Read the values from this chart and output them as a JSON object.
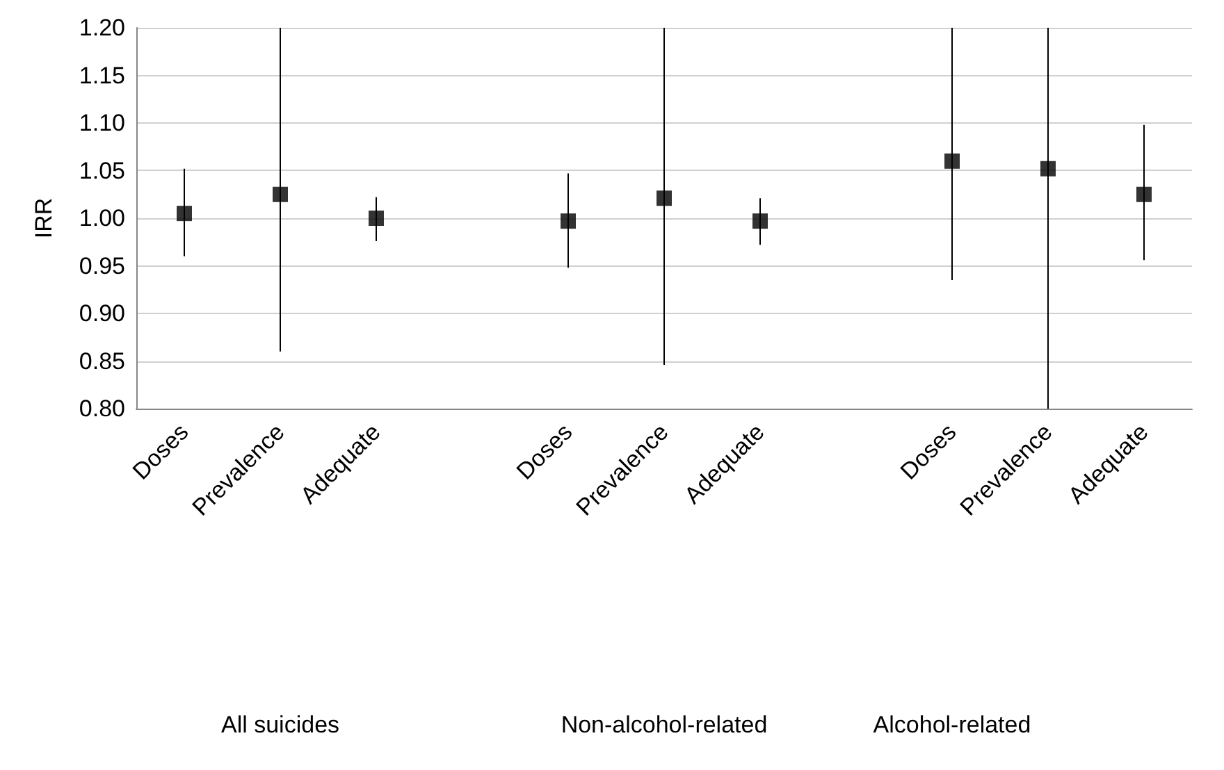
{
  "chart_data": {
    "type": "scatter",
    "ylabel": "IRR",
    "categories": [
      "Doses",
      "Prevalence",
      "Adequate",
      null,
      "Doses",
      "Prevalence",
      "Adequate",
      null,
      "Doses",
      "Prevalence",
      "Adequate"
    ],
    "values": [
      1.005,
      1.025,
      1.0,
      null,
      0.997,
      1.021,
      0.997,
      null,
      1.06,
      1.052,
      1.025
    ],
    "errors": [
      [
        0.96,
        1.052
      ],
      [
        0.86,
        1.2
      ],
      [
        0.976,
        1.022
      ],
      null,
      [
        0.948,
        1.047
      ],
      [
        0.846,
        1.2
      ],
      [
        0.972,
        1.021
      ],
      null,
      [
        0.935,
        1.2
      ],
      [
        0.8,
        1.2
      ],
      [
        0.956,
        1.098
      ]
    ],
    "color": "#000000",
    "marker": "square",
    "grid": "y",
    "ylim": [
      0.8,
      1.2
    ],
    "yticks": [
      {
        "value": 0.8,
        "label": "0.80"
      },
      0.85,
      {
        "value": 0.9,
        "label": "0.90"
      },
      0.95,
      {
        "value": 1.0,
        "label": "1.00"
      },
      1.05,
      {
        "value": 1.1,
        "label": "1.10"
      },
      1.15,
      {
        "value": 1.2,
        "label": "1.20"
      }
    ],
    "annotations": [
      "All suicides",
      "Non-alcohol-related",
      "Alcohol-related"
    ]
  }
}
